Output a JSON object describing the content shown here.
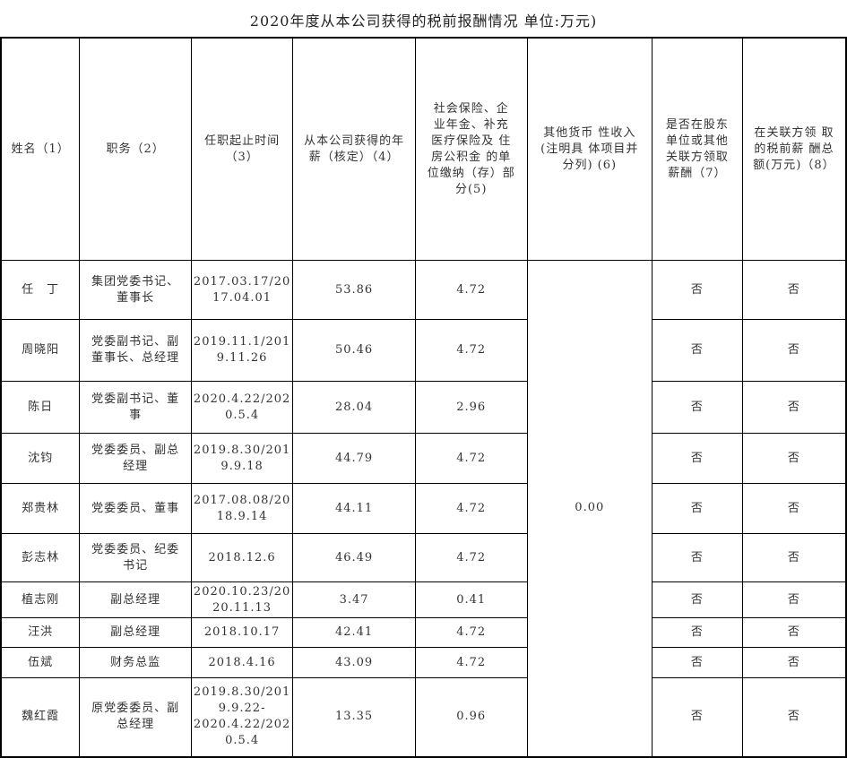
{
  "title": "2020年度从本公司获得的税前报酬情况 单位:万元)",
  "headers": [
    "姓名（1）",
    "职务（2）",
    "任职起止时间\n（3）",
    "从本公司获得的年\n薪（核定）（4）",
    "社会保险、企\n业年金、补充\n医疗保险及 住\n房公积金 的单\n位缴纳（存）部\n分(5)",
    "其他货币 性收入\n(注明具 体项目并\n分列) (6)",
    "是否在股东\n单位或其他\n关联方领取\n薪酬（7）",
    "在关联方领 取\n的税前薪 酬总\n额(万元)（8）"
  ],
  "other_income": "0.00",
  "rows": [
    {
      "name": "任　丁",
      "position": "集团党委书记、\n董事长",
      "term": "2017.03.17/20\n17.04.01",
      "salary": "53.86",
      "insurance": "4.72",
      "shareholder": "否",
      "related_pay": "否"
    },
    {
      "name": "周晓阳",
      "position": "党委副书记、副\n董事长、总经理",
      "term": "2019.11.1/201\n9.11.26",
      "salary": "50.46",
      "insurance": "4.72",
      "shareholder": "否",
      "related_pay": "否"
    },
    {
      "name": "陈日",
      "position": "党委副书记、董\n事",
      "term": "2020.4.22/202\n0.5.4",
      "salary": "28.04",
      "insurance": "2.96",
      "shareholder": "否",
      "related_pay": "否"
    },
    {
      "name": "沈钧",
      "position": "党委委员、副总\n经理",
      "term": "2019.8.30/201\n9.9.18",
      "salary": "44.79",
      "insurance": "4.72",
      "shareholder": "否",
      "related_pay": "否"
    },
    {
      "name": "郑贵林",
      "position": "党委委员、董事",
      "term": "2017.08.08/20\n18.9.14",
      "salary": "44.11",
      "insurance": "4.72",
      "shareholder": "否",
      "related_pay": "否"
    },
    {
      "name": "彭志林",
      "position": "党委委员、纪委\n书记",
      "term": "2018.12.6",
      "salary": "46.49",
      "insurance": "4.72",
      "shareholder": "否",
      "related_pay": "否"
    },
    {
      "name": "植志刚",
      "position": "副总经理",
      "term": "2020.10.23/20\n20.11.13",
      "salary": "3.47",
      "insurance": "0.41",
      "shareholder": "否",
      "related_pay": "否"
    },
    {
      "name": "汪洪",
      "position": "副总经理",
      "term": "2018.10.17",
      "salary": "42.41",
      "insurance": "4.72",
      "shareholder": "否",
      "related_pay": "否"
    },
    {
      "name": "伍斌",
      "position": "财务总监",
      "term": "2018.4.16",
      "salary": "43.09",
      "insurance": "4.72",
      "shareholder": "否",
      "related_pay": "否"
    },
    {
      "name": "魏红霞",
      "position": "原党委委员、副\n总经理",
      "term": "2019.8.30/201\n9.9.22-\n2020.4.22/202\n0.5.4",
      "salary": "13.35",
      "insurance": "0.96",
      "shareholder": "否",
      "related_pay": "否"
    }
  ]
}
